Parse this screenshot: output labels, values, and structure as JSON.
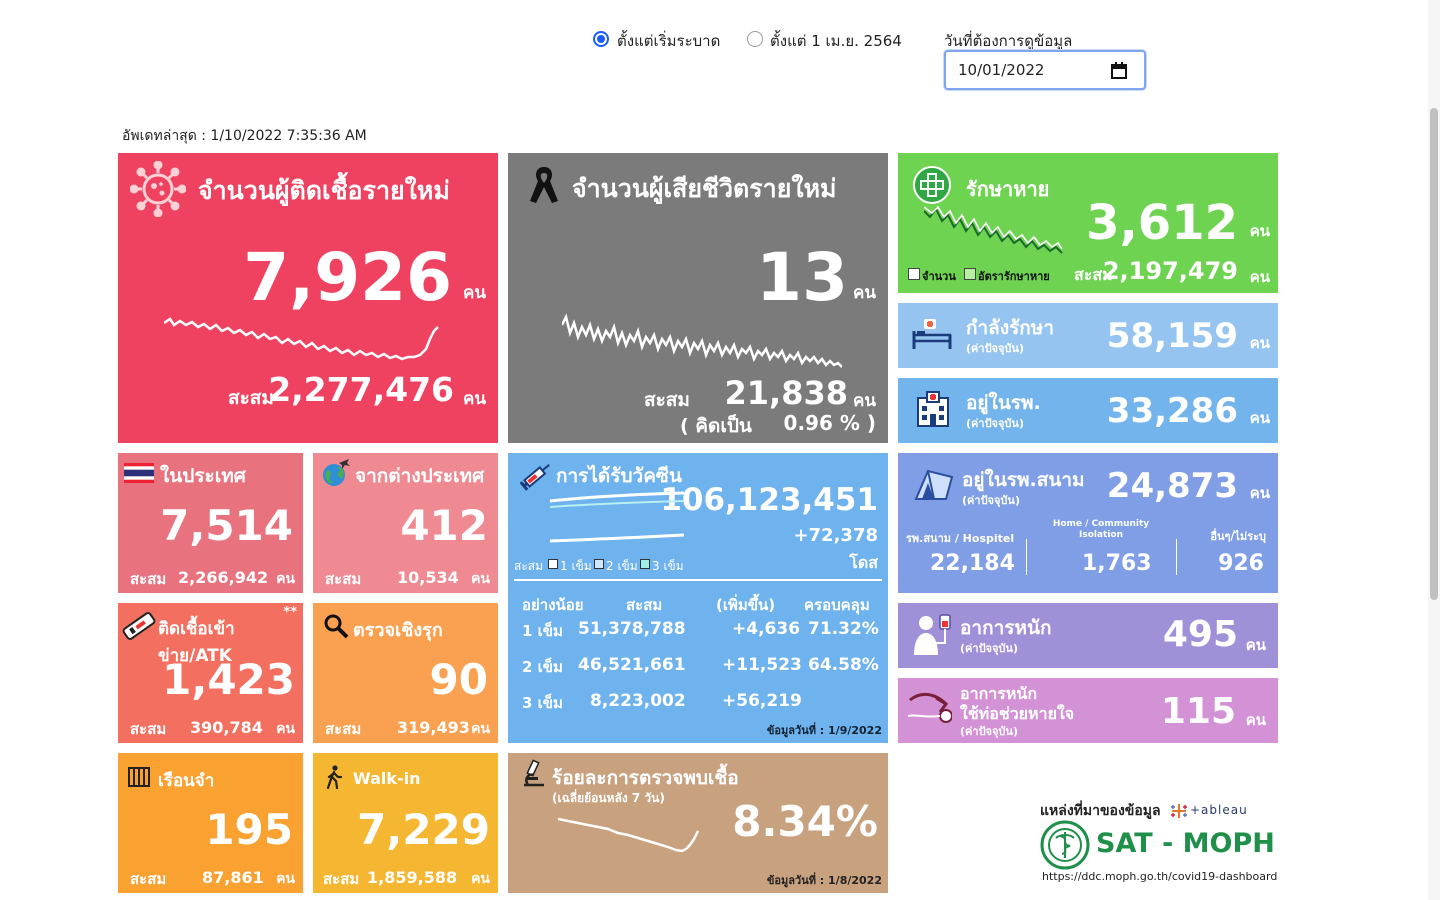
{
  "filters": {
    "radio_since_start": "ตั้งแต่เริ่มระบาด",
    "radio_since_apr": "ตั้งแต่ 1 เม.ย. 2564",
    "date_label": "วันที่ต้องการดูข้อมูล",
    "date_value": "10/01/2022"
  },
  "last_update": "อัพเดทล่าสุด : 1/10/2022 7:35:36 AM",
  "new_cases": {
    "title": "จำนวนผู้ติดเชื้อรายใหม่",
    "value": "7,926",
    "unit": "คน",
    "cum_label": "สะสม",
    "cum_value": "2,277,476",
    "cum_unit": "คน"
  },
  "new_deaths": {
    "title": "จำนวนผู้เสียชีวิตรายใหม่",
    "value": "13",
    "unit": "คน",
    "cum_label": "สะสม",
    "cum_value": "21,838",
    "cum_unit": "คน",
    "pct_open": "( คิดเป็น",
    "pct_value": "0.96 % )"
  },
  "recovered": {
    "title": "รักษาหาย",
    "value": "3,612",
    "unit": "คน",
    "legend_count": "จำนวน",
    "legend_rate": "อัตรารักษาหาย",
    "cum_label": "สะสม",
    "cum_value": "2,197,479",
    "cum_unit": "คน"
  },
  "treating": {
    "title": "กำลังรักษา",
    "sub": "(ค่าปัจจุบัน)",
    "value": "58,159",
    "unit": "คน"
  },
  "in_hospital": {
    "title": "อยู่ในรพ.",
    "sub": "(ค่าปัจจุบัน)",
    "value": "33,286",
    "unit": "คน"
  },
  "domestic": {
    "title": "ในประเทศ",
    "value": "7,514",
    "cum_label": "สะสม",
    "cum_value": "2,266,942",
    "cum_unit": "คน"
  },
  "imported": {
    "title": "จากต่างประเทศ",
    "value": "412",
    "cum_label": "สะสม",
    "cum_value": "10,534",
    "cum_unit": "คน"
  },
  "vaccine": {
    "title": "การได้รับวัคซีน",
    "total": "106,123,451",
    "delta": "+72,378",
    "unit": "โดส",
    "legend_cum": "สะสม",
    "legend_d1": "1 เข็ม",
    "legend_d2": "2 เข็ม",
    "legend_d3": "3 เข็ม",
    "headers": {
      "dose": "อย่างน้อย",
      "cum": "สะสม",
      "inc": "(เพิ่มขึ้น)",
      "cov": "ครอบคลุม"
    },
    "rows": [
      {
        "dose": "1 เข็ม",
        "cum": "51,378,788",
        "inc": "+4,636",
        "cov": "71.32%"
      },
      {
        "dose": "2 เข็ม",
        "cum": "46,521,661",
        "inc": "+11,523",
        "cov": "64.58%"
      },
      {
        "dose": "3 เข็ม",
        "cum": "8,223,002",
        "inc": "+56,219",
        "cov": ""
      }
    ],
    "as_of": "ข้อมูลวันที่ : 1/9/2022"
  },
  "field_hospital": {
    "title": "อยู่ในรพ.สนาม",
    "sub": "(ค่าปัจจุบัน)",
    "value": "24,873",
    "unit": "คน",
    "col1_label": "รพ.สนาม / Hospitel",
    "col1_value": "22,184",
    "col2_label": "Home / Community Isolation",
    "col2_value": "1,763",
    "col3_label": "อื่นๆ/ไม่ระบุ",
    "col3_value": "926"
  },
  "atk": {
    "title": "ติดเชื้อเข้าข่าย/ATK",
    "star": "**",
    "value": "1,423",
    "cum_label": "สะสม",
    "cum_value": "390,784",
    "cum_unit": "คน"
  },
  "proactive": {
    "title": "ตรวจเชิงรุก",
    "value": "90",
    "cum_label": "สะสม",
    "cum_value": "319,493",
    "cum_unit": "คน"
  },
  "severe": {
    "title": "อาการหนัก",
    "sub": "(ค่าปัจจุบัน)",
    "value": "495",
    "unit": "คน"
  },
  "ventilator": {
    "title1": "อาการหนัก",
    "title2": "ใช้ท่อช่วยหายใจ",
    "sub": "(ค่าปัจจุบัน)",
    "value": "115",
    "unit": "คน"
  },
  "prison": {
    "title": "เรือนจำ",
    "value": "195",
    "cum_label": "สะสม",
    "cum_value": "87,861",
    "cum_unit": "คน"
  },
  "walkin": {
    "title": "Walk-in",
    "value": "7,229",
    "cum_label": "สะสม",
    "cum_value": "1,859,588",
    "cum_unit": "คน"
  },
  "positivity": {
    "title": "ร้อยละการตรวจพบเชื้อ",
    "sub": "(เฉลี่ยย้อนหลัง 7 วัน)",
    "value": "8.34%",
    "as_of": "ข้อมูลวันที่ : 1/8/2022"
  },
  "source": {
    "label": "แหล่งที่มาของข้อมูล",
    "tableau": "+ableau",
    "org": "SAT - MOPH",
    "url": "https://ddc.moph.go.th/covid19-dashboard"
  },
  "colors": {
    "cases": "#ee4260",
    "deaths": "#7b7b7b",
    "recovered": "#6fd352",
    "treating": "#96c4f0",
    "hospital": "#74b4ec",
    "domestic": "#e8737f",
    "imported": "#ef8a92",
    "vaccine": "#6eb2ee",
    "field": "#7f9ee6",
    "atk": "#f37060",
    "proactive": "#f9a150",
    "severe": "#a090d8",
    "ventilator": "#d391d6",
    "prison": "#f9a131",
    "walkin": "#f5b731",
    "positivity": "#c8a17f",
    "moph_green": "#1f8f4a"
  }
}
